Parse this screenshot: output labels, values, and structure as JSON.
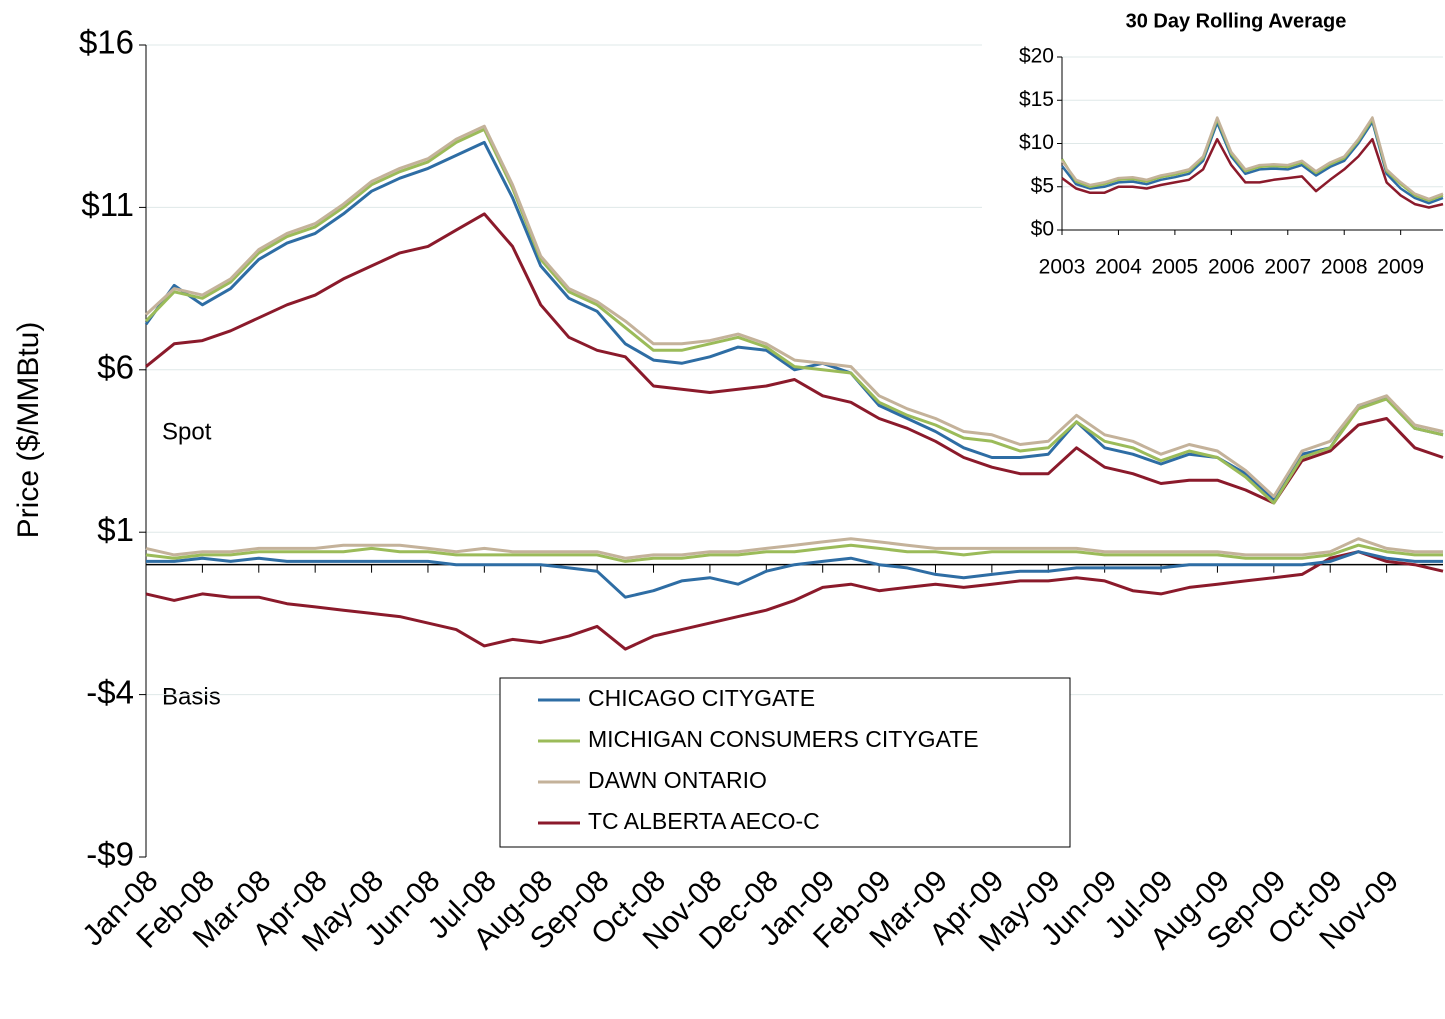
{
  "chart_data": [
    {
      "type": "line",
      "y_label": "Price ($/MMBtu)",
      "annotations": [
        "Spot",
        "Basis"
      ],
      "legend": "lower center",
      "grid": true,
      "zero_line": true,
      "categories": [
        "Jan-08",
        null,
        "Feb-08",
        null,
        "Mar-08",
        null,
        "Apr-08",
        null,
        "May-08",
        null,
        "Jun-08",
        null,
        "Jul-08",
        null,
        "Aug-08",
        null,
        "Sep-08",
        null,
        "Oct-08",
        null,
        "Nov-08",
        null,
        "Dec-08",
        null,
        "Jan-09",
        null,
        "Feb-09",
        null,
        "Mar-09",
        null,
        "Apr-09",
        null,
        "May-09",
        null,
        "Jun-09",
        null,
        "Jul-09",
        null,
        "Aug-09",
        null,
        "Sep-09",
        null,
        "Oct-09",
        null,
        "Nov-09",
        null,
        null
      ],
      "ylim": [
        -9,
        16
      ],
      "yticks": [
        {
          "value": -9,
          "label": "-$9"
        },
        {
          "value": -4,
          "label": "-$4"
        },
        {
          "value": 1,
          "label": "$1"
        },
        {
          "value": 6,
          "label": "$6"
        },
        {
          "value": 11,
          "label": "$11"
        },
        {
          "value": 16,
          "label": "$16"
        }
      ],
      "series": [
        {
          "name": "CHICAGO CITYGATE",
          "color": "#2e6da4",
          "values": [
            7.4,
            8.6,
            8.0,
            8.5,
            9.4,
            9.9,
            10.2,
            10.8,
            11.5,
            11.9,
            12.2,
            12.6,
            13.0,
            11.3,
            9.2,
            8.2,
            7.8,
            6.8,
            6.3,
            6.2,
            6.4,
            6.7,
            6.6,
            6.0,
            6.2,
            5.9,
            4.9,
            4.5,
            4.1,
            3.6,
            3.3,
            3.3,
            3.4,
            4.4,
            3.6,
            3.4,
            3.1,
            3.4,
            3.3,
            2.8,
            2.0,
            3.4,
            3.6,
            4.9,
            5.1,
            4.2,
            4.0
          ],
          "basis": [
            0.1,
            0.1,
            0.2,
            0.1,
            0.2,
            0.1,
            0.1,
            0.1,
            0.1,
            0.1,
            0.1,
            0.0,
            0.0,
            0.0,
            0.0,
            -0.1,
            -0.2,
            -1.0,
            -0.8,
            -0.5,
            -0.4,
            -0.6,
            -0.2,
            0.0,
            0.1,
            0.2,
            0.0,
            -0.1,
            -0.3,
            -0.4,
            -0.3,
            -0.2,
            -0.2,
            -0.1,
            -0.1,
            -0.1,
            -0.1,
            0.0,
            0.0,
            0.0,
            0.0,
            0.0,
            0.1,
            0.4,
            0.2,
            0.1,
            0.1
          ]
        },
        {
          "name": "MICHIGAN CONSUMERS CITYGATE",
          "color": "#9bbb59",
          "values": [
            7.5,
            8.4,
            8.2,
            8.7,
            9.6,
            10.1,
            10.4,
            11.0,
            11.7,
            12.1,
            12.4,
            13.0,
            13.4,
            11.6,
            9.4,
            8.4,
            8.0,
            7.3,
            6.6,
            6.6,
            6.8,
            7.0,
            6.7,
            6.1,
            6.0,
            5.9,
            5.0,
            4.6,
            4.3,
            3.9,
            3.8,
            3.5,
            3.6,
            4.4,
            3.8,
            3.6,
            3.2,
            3.5,
            3.3,
            2.7,
            1.9,
            3.3,
            3.6,
            4.8,
            5.1,
            4.2,
            4.0
          ],
          "basis": [
            0.3,
            0.2,
            0.3,
            0.3,
            0.4,
            0.4,
            0.4,
            0.4,
            0.5,
            0.4,
            0.4,
            0.3,
            0.3,
            0.3,
            0.3,
            0.3,
            0.3,
            0.1,
            0.2,
            0.2,
            0.3,
            0.3,
            0.4,
            0.4,
            0.5,
            0.6,
            0.5,
            0.4,
            0.4,
            0.3,
            0.4,
            0.4,
            0.4,
            0.4,
            0.3,
            0.3,
            0.3,
            0.3,
            0.3,
            0.2,
            0.2,
            0.2,
            0.3,
            0.6,
            0.4,
            0.3,
            0.3
          ]
        },
        {
          "name": "DAWN ONTARIO",
          "color": "#c4b29a",
          "values": [
            7.7,
            8.5,
            8.3,
            8.8,
            9.7,
            10.2,
            10.5,
            11.1,
            11.8,
            12.2,
            12.5,
            13.1,
            13.5,
            11.7,
            9.5,
            8.5,
            8.1,
            7.5,
            6.8,
            6.8,
            6.9,
            7.1,
            6.8,
            6.3,
            6.2,
            6.1,
            5.2,
            4.8,
            4.5,
            4.1,
            4.0,
            3.7,
            3.8,
            4.6,
            4.0,
            3.8,
            3.4,
            3.7,
            3.5,
            2.9,
            2.1,
            3.5,
            3.8,
            4.9,
            5.2,
            4.3,
            4.1
          ],
          "basis": [
            0.5,
            0.3,
            0.4,
            0.4,
            0.5,
            0.5,
            0.5,
            0.6,
            0.6,
            0.6,
            0.5,
            0.4,
            0.5,
            0.4,
            0.4,
            0.4,
            0.4,
            0.2,
            0.3,
            0.3,
            0.4,
            0.4,
            0.5,
            0.6,
            0.7,
            0.8,
            0.7,
            0.6,
            0.5,
            0.5,
            0.5,
            0.5,
            0.5,
            0.5,
            0.4,
            0.4,
            0.4,
            0.4,
            0.4,
            0.3,
            0.3,
            0.3,
            0.4,
            0.8,
            0.5,
            0.4,
            0.4
          ]
        },
        {
          "name": "TC ALBERTA AECO-C",
          "color": "#8b1a2b",
          "values": [
            6.1,
            6.8,
            6.9,
            7.2,
            7.6,
            8.0,
            8.3,
            8.8,
            9.2,
            9.6,
            9.8,
            10.3,
            10.8,
            9.8,
            8.0,
            7.0,
            6.6,
            6.4,
            5.5,
            5.4,
            5.3,
            5.4,
            5.5,
            5.7,
            5.2,
            5.0,
            4.5,
            4.2,
            3.8,
            3.3,
            3.0,
            2.8,
            2.8,
            3.6,
            3.0,
            2.8,
            2.5,
            2.6,
            2.6,
            2.3,
            1.9,
            3.2,
            3.5,
            4.3,
            4.5,
            3.6,
            3.3
          ],
          "basis": [
            -0.9,
            -1.1,
            -0.9,
            -1.0,
            -1.0,
            -1.2,
            -1.3,
            -1.4,
            -1.5,
            -1.6,
            -1.8,
            -2.0,
            -2.5,
            -2.3,
            -2.4,
            -2.2,
            -1.9,
            -2.6,
            -2.2,
            -2.0,
            -1.8,
            -1.6,
            -1.4,
            -1.1,
            -0.7,
            -0.6,
            -0.8,
            -0.7,
            -0.6,
            -0.7,
            -0.6,
            -0.5,
            -0.5,
            -0.4,
            -0.5,
            -0.8,
            -0.9,
            -0.7,
            -0.6,
            -0.5,
            -0.4,
            -0.3,
            0.2,
            0.4,
            0.1,
            0.0,
            -0.2
          ]
        }
      ]
    },
    {
      "type": "line",
      "title": "30 Day Rolling Average",
      "grid": true,
      "x": [
        2003,
        2003.25,
        2003.5,
        2003.75,
        2004,
        2004.25,
        2004.5,
        2004.75,
        2005,
        2005.25,
        2005.5,
        2005.75,
        2006,
        2006.25,
        2006.5,
        2006.75,
        2007,
        2007.25,
        2007.5,
        2007.75,
        2008,
        2008.25,
        2008.5,
        2008.75,
        2009,
        2009.25,
        2009.5,
        2009.75
      ],
      "xlim": [
        2003,
        2009.75
      ],
      "xticks": [
        2003,
        2004,
        2005,
        2006,
        2007,
        2008,
        2009
      ],
      "ylim": [
        0,
        20
      ],
      "yticks": [
        {
          "value": 0,
          "label": "$0"
        },
        {
          "value": 5,
          "label": "$5"
        },
        {
          "value": 10,
          "label": "$10"
        },
        {
          "value": 15,
          "label": "$15"
        },
        {
          "value": 20,
          "label": "$20"
        }
      ],
      "series": [
        {
          "color": "#2e6da4",
          "values": [
            7.4,
            5.3,
            4.8,
            5.0,
            5.5,
            5.6,
            5.3,
            5.8,
            6.1,
            6.5,
            8.0,
            12.4,
            8.5,
            6.5,
            7.0,
            7.1,
            7.0,
            7.5,
            6.3,
            7.3,
            8.0,
            10.0,
            12.5,
            6.5,
            4.8,
            3.7,
            3.1,
            3.7
          ]
        },
        {
          "color": "#9bbb59",
          "values": [
            8.2,
            5.6,
            5.0,
            5.3,
            5.8,
            5.9,
            5.6,
            6.1,
            6.4,
            6.8,
            8.3,
            12.8,
            8.8,
            6.8,
            7.3,
            7.4,
            7.3,
            7.8,
            6.6,
            7.6,
            8.3,
            10.3,
            12.8,
            6.8,
            5.3,
            4.0,
            3.4,
            4.0
          ]
        },
        {
          "color": "#c4b29a",
          "values": [
            8.0,
            5.8,
            5.2,
            5.5,
            6.0,
            6.1,
            5.8,
            6.3,
            6.6,
            7.0,
            8.5,
            13.0,
            9.0,
            7.0,
            7.5,
            7.6,
            7.5,
            8.0,
            6.8,
            7.8,
            8.5,
            10.5,
            13.0,
            7.0,
            5.5,
            4.2,
            3.6,
            4.2
          ]
        },
        {
          "color": "#8b1a2b",
          "values": [
            6.0,
            4.8,
            4.3,
            4.3,
            5.0,
            5.0,
            4.8,
            5.2,
            5.5,
            5.8,
            7.0,
            10.5,
            7.5,
            5.5,
            5.5,
            5.8,
            6.0,
            6.2,
            4.5,
            5.8,
            7.0,
            8.5,
            10.5,
            5.5,
            4.0,
            3.0,
            2.6,
            3.0
          ]
        }
      ]
    }
  ]
}
